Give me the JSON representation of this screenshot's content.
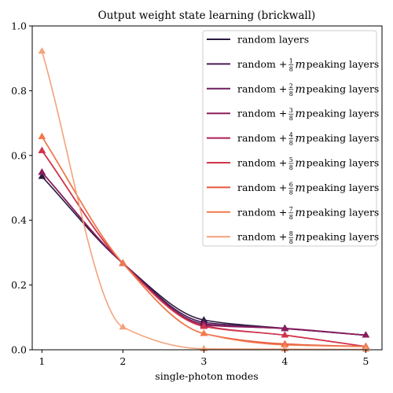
{
  "chart_data": {
    "type": "line",
    "title": "Output weight state learning (brickwall)",
    "xlabel": "single-photon modes",
    "ylabel": "",
    "xlim": [
      0.88,
      5.2
    ],
    "ylim": [
      0,
      1.0
    ],
    "xticks": [
      "1",
      "2",
      "3",
      "4",
      "5"
    ],
    "yticks": [
      "0.0",
      "0.2",
      "0.4",
      "0.6",
      "0.8",
      "1.0"
    ],
    "grid": false,
    "legend_position": "top-right",
    "x": [
      1,
      2,
      3,
      4,
      5
    ],
    "series": [
      {
        "name": "random layers",
        "legend": {
          "prefix": "random layers",
          "num": "",
          "den": "",
          "suffix": ""
        },
        "color": "#2a1a3f",
        "values": [
          0.535,
          0.267,
          0.092,
          0.066,
          0.045
        ]
      },
      {
        "name": "random + 1/8 m peaking layers",
        "legend": {
          "prefix": "random + ",
          "num": "1",
          "den": "8",
          "suffix": " peaking layers"
        },
        "color": "#4a1c53",
        "values": [
          0.548,
          0.267,
          0.085,
          0.066,
          0.045
        ]
      },
      {
        "name": "random + 2/8 m peaking layers",
        "legend": {
          "prefix": "random + ",
          "num": "2",
          "den": "8",
          "suffix": " peaking layers"
        },
        "color": "#6c1d5e",
        "values": [
          0.548,
          0.267,
          0.08,
          0.065,
          0.045
        ]
      },
      {
        "name": "random + 3/8 m peaking layers",
        "legend": {
          "prefix": "random + ",
          "num": "3",
          "den": "8",
          "suffix": " peaking layers"
        },
        "color": "#8b1d5f",
        "values": [
          0.548,
          0.267,
          0.076,
          0.066,
          0.045
        ]
      },
      {
        "name": "random + 4/8 m peaking layers",
        "legend": {
          "prefix": "random + ",
          "num": "4",
          "den": "8",
          "suffix": " peaking layers"
        },
        "color": "#ad1e57",
        "values": [
          0.615,
          0.267,
          0.074,
          0.045,
          0.01
        ]
      },
      {
        "name": "random + 5/8 m peaking layers",
        "legend": {
          "prefix": "random + ",
          "num": "5",
          "den": "8",
          "suffix": " peaking layers"
        },
        "color": "#d1354a",
        "values": [
          0.615,
          0.267,
          0.072,
          0.045,
          0.01
        ]
      },
      {
        "name": "random + 6/8 m peaking layers",
        "legend": {
          "prefix": "random + ",
          "num": "6",
          "den": "8",
          "suffix": " peaking layers"
        },
        "color": "#e6543d",
        "values": [
          0.658,
          0.267,
          0.05,
          0.018,
          0.01
        ]
      },
      {
        "name": "random + 7/8 m peaking layers",
        "legend": {
          "prefix": "random + ",
          "num": "7",
          "den": "8",
          "suffix": " peaking layers"
        },
        "color": "#f07a4c",
        "values": [
          0.658,
          0.267,
          0.05,
          0.015,
          0.01
        ]
      },
      {
        "name": "random + 8/8 m peaking layers",
        "legend": {
          "prefix": "random + ",
          "num": "8",
          "den": "8",
          "suffix": " peaking layers"
        },
        "color": "#f4a27b",
        "values": [
          0.922,
          0.07,
          0.003,
          0.002,
          0.001
        ]
      }
    ]
  }
}
